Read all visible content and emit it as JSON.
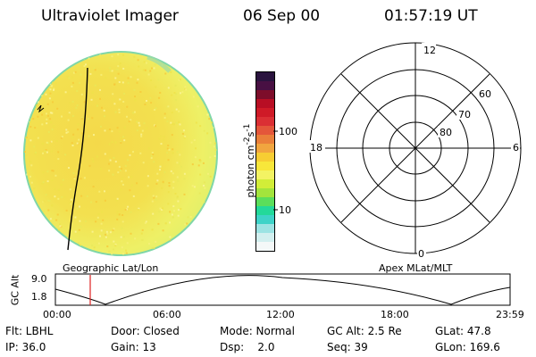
{
  "header": {
    "title": "Ultraviolet Imager",
    "date": "06 Sep 00",
    "time": "01:57:19 UT"
  },
  "colorbar": {
    "label": "photon cm",
    "label_sup1": "-2",
    "label_mid": "s",
    "label_sup2": "-1",
    "tick_100": "100",
    "tick_10": "10",
    "colors": [
      "#f4f8f8",
      "#d2efef",
      "#9ce3e3",
      "#3ed3c8",
      "#23d99a",
      "#5bde5b",
      "#a3e43c",
      "#d2ed38",
      "#f3f363",
      "#f8e73a",
      "#f7cd33",
      "#f1a53f",
      "#ea7f3a",
      "#e4563a",
      "#db2f34",
      "#cf1a27",
      "#b80e24",
      "#7d0d2a",
      "#481043",
      "#2a133e"
    ]
  },
  "polar": {
    "mlt_12": "12",
    "mlt_18": "18",
    "mlt_6": "6",
    "mlt_0": "0",
    "lat_60": "60",
    "lat_70": "70",
    "lat_80": "80"
  },
  "track": {
    "left_title": "Geographic Lat/Lon",
    "right_title": "Apex MLat/MLT",
    "axis_label": "GC Alt",
    "y_max": "9.0",
    "y_min": "1.8",
    "t0": "00:00",
    "t1": "06:00",
    "t2": "12:00",
    "t3": "18:00",
    "t4": "23:59"
  },
  "status": {
    "flt": "Flt: LBHL",
    "door": "Door: Closed",
    "mode": "Mode: Normal",
    "gcalt": "GC Alt: 2.5 Re",
    "glat": "GLat:  47.8",
    "ip": "IP: 36.0",
    "gain": "Gain: 13",
    "dsp": "Dsp:    2.0",
    "seq": "Seq: 39",
    "glon": "GLon: 169.6"
  }
}
